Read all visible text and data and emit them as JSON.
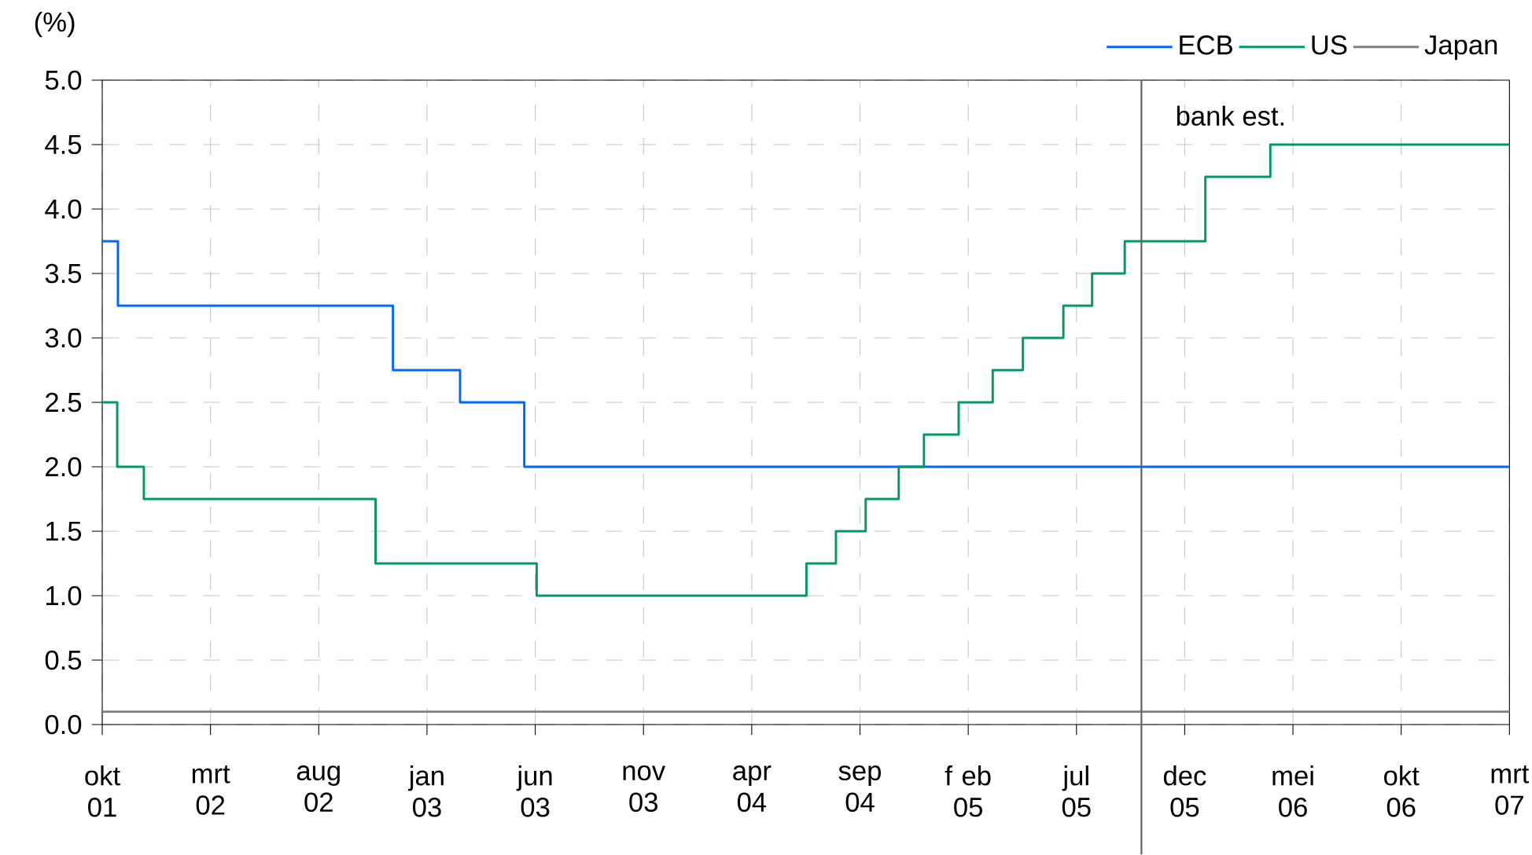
{
  "chart_data": {
    "type": "step",
    "ylabel": "(%)",
    "xlim": [
      "2001-10",
      "2007-03"
    ],
    "xticks": [
      {
        "value": "2001-10",
        "label": "okt 01"
      },
      {
        "value": "2002-03",
        "label": "mrt 02"
      },
      {
        "value": "2002-08",
        "label": "aug 02"
      },
      {
        "value": "2003-01",
        "label": "jan 03"
      },
      {
        "value": "2003-06",
        "label": "jun 03"
      },
      {
        "value": "2003-11",
        "label": "nov 03"
      },
      {
        "value": "2004-04",
        "label": "apr 04"
      },
      {
        "value": "2004-09",
        "label": "sep 04"
      },
      {
        "value": "2005-02",
        "label": "f eb 05"
      },
      {
        "value": "2005-07",
        "label": "jul 05"
      },
      {
        "value": "2005-12",
        "label": "dec 05"
      },
      {
        "value": "2006-05",
        "label": "mei 06"
      },
      {
        "value": "2006-10",
        "label": "okt 06"
      },
      {
        "value": "2007-03",
        "label": "mrt 07"
      }
    ],
    "ylim": [
      0,
      5
    ],
    "yticks": [
      {
        "value": 0,
        "label": "0.0"
      },
      {
        "value": 0.5,
        "label": "0.5"
      },
      {
        "value": 1,
        "label": "1.0"
      },
      {
        "value": 1.5,
        "label": "1.5"
      },
      {
        "value": 2,
        "label": "2.0"
      },
      {
        "value": 2.5,
        "label": "2.5"
      },
      {
        "value": 3,
        "label": "3.0"
      },
      {
        "value": 3.5,
        "label": "3.5"
      },
      {
        "value": 4,
        "label": "4.0"
      },
      {
        "value": 4.5,
        "label": "4.5"
      },
      {
        "value": 5,
        "label": "5.0"
      }
    ],
    "grid": true,
    "legend": "top right",
    "ref_lines": [
      {
        "axis": "x",
        "value": "2005-10",
        "label": "bank est.",
        "color": "#606060"
      }
    ],
    "series": [
      {
        "name": "ECB",
        "color": "#0066ff",
        "x": [
          "2001-10",
          "2001-10-23",
          "2002-11-14",
          "2003-02-17",
          "2003-05-16",
          "2007-03"
        ],
        "values": [
          3.75,
          3.25,
          2.75,
          2.5,
          2.0,
          2.0
        ]
      },
      {
        "name": "US",
        "color": "#009966",
        "x": [
          "2001-10",
          "2001-10-22",
          "2001-11-29",
          "2002-10-20",
          "2003-06-03",
          "2004-06-17",
          "2004-07-28",
          "2004-09-09",
          "2004-10-25",
          "2004-11-30",
          "2005-01-18",
          "2005-03-05",
          "2005-04-17",
          "2005-06-13",
          "2005-07-23",
          "2005-09-08",
          "2005-12-30",
          "2006-03-30",
          "2007-03"
        ],
        "values": [
          2.5,
          2.0,
          1.75,
          1.25,
          1.0,
          1.25,
          1.5,
          1.75,
          2.0,
          2.25,
          2.5,
          2.75,
          3.0,
          3.25,
          3.5,
          3.75,
          4.25,
          4.5,
          4.5
        ]
      },
      {
        "name": "Japan",
        "color": "#808080",
        "x": [
          "2001-10",
          "2007-03"
        ],
        "values": [
          0.1,
          0.1
        ]
      }
    ]
  }
}
